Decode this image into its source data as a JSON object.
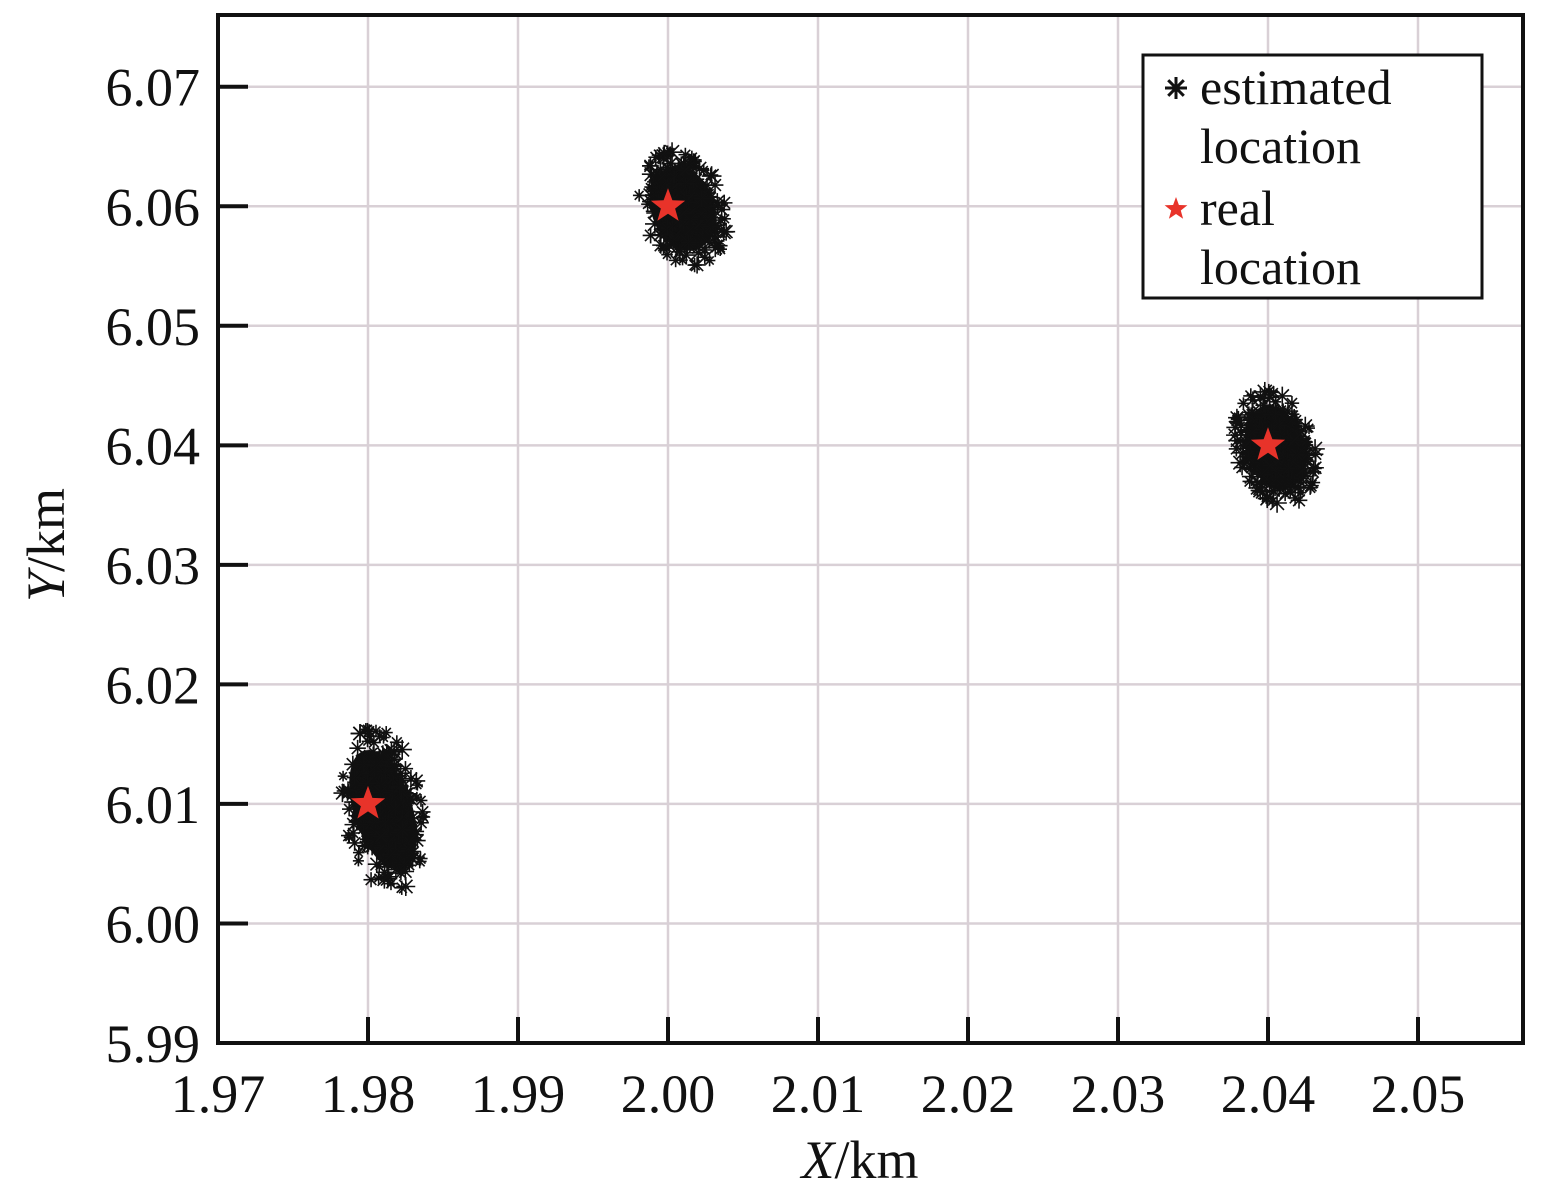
{
  "chart_data": {
    "type": "scatter",
    "title": "",
    "xlabel": {
      "var": "X",
      "unit": "/km"
    },
    "ylabel": {
      "var": "Y",
      "unit": "/km"
    },
    "xlim": [
      1.97,
      2.057
    ],
    "ylim": [
      5.99,
      6.076
    ],
    "xticks": [
      "1.97",
      "1.98",
      "1.99",
      "2.00",
      "2.01",
      "2.02",
      "2.03",
      "2.04",
      "2.05"
    ],
    "yticks": [
      "5.99",
      "6.00",
      "6.01",
      "6.02",
      "6.03",
      "6.04",
      "6.05",
      "6.06",
      "6.07"
    ],
    "grid": true,
    "legend_position": "top-right",
    "series": [
      {
        "name": "estimated location",
        "legend_lines": [
          "estimated",
          "location"
        ],
        "marker": "asterisk",
        "color": "#111111",
        "clusters": [
          {
            "center": [
              1.981,
              6.0095
            ],
            "spread_x": 0.0025,
            "spread_y": 0.0065
          },
          {
            "center": [
              2.001,
              6.0598
            ],
            "spread_x": 0.0027,
            "spread_y": 0.0045
          },
          {
            "center": [
              2.0405,
              6.0398
            ],
            "spread_x": 0.0025,
            "spread_y": 0.0045
          }
        ]
      },
      {
        "name": "real location",
        "legend_lines": [
          "real",
          "location"
        ],
        "marker": "star",
        "color": "#e8332a",
        "points": [
          [
            1.98,
            6.01
          ],
          [
            2.0,
            6.06
          ],
          [
            2.04,
            6.04
          ]
        ]
      }
    ]
  }
}
